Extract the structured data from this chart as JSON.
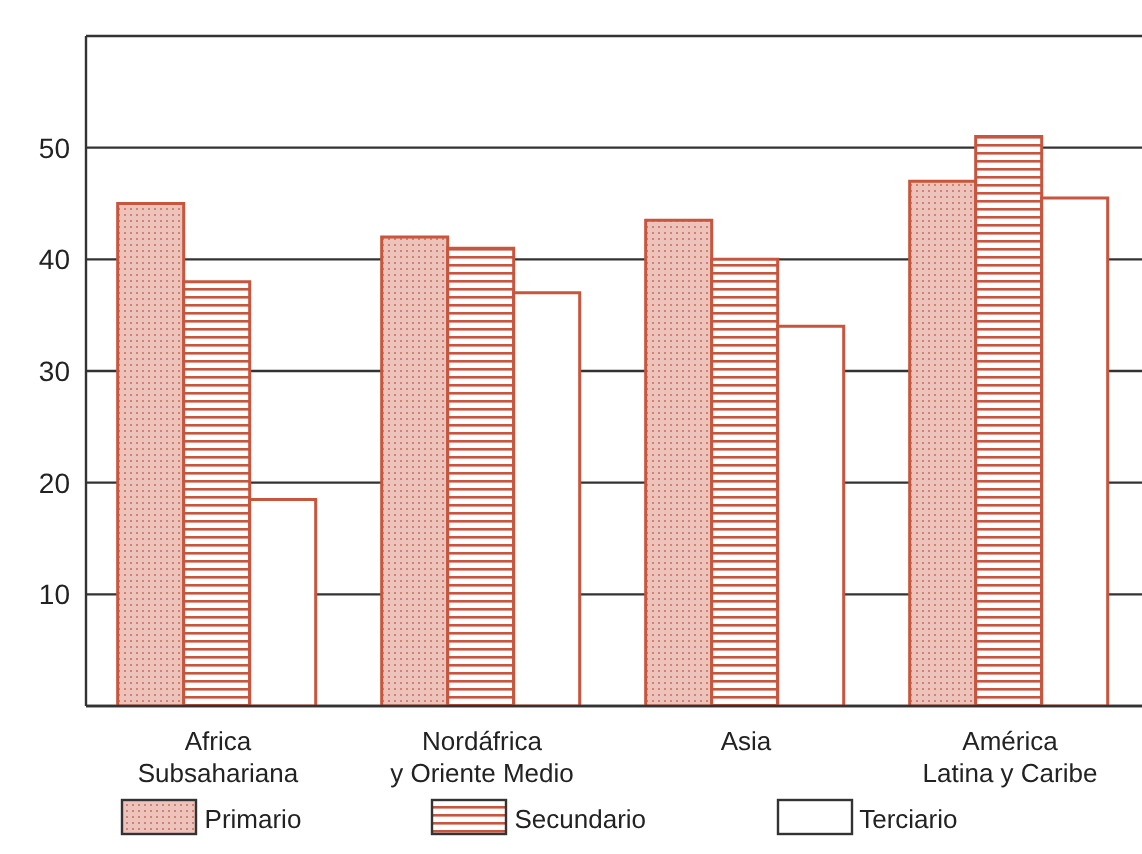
{
  "chart_data": {
    "type": "bar",
    "categories": [
      "Africa\nSubsahariana",
      "Nordáfrica\ny Oriente Medio",
      "Asia",
      "América\nLatina y Caribe"
    ],
    "series": [
      {
        "name": "Primario",
        "color": "#c8553d",
        "values": [
          45,
          42,
          43.5,
          47
        ]
      },
      {
        "name": "Secundario",
        "color": "#c8553d",
        "values": [
          38,
          41,
          40,
          51
        ]
      },
      {
        "name": "Terciario",
        "color": "#c8553d",
        "values": [
          18.5,
          37,
          34,
          45.5
        ]
      }
    ],
    "ylim": [
      0,
      60
    ],
    "yticks": [
      {
        "value": 0,
        "label": null
      },
      10,
      20,
      30,
      40,
      50
    ],
    "grid": "y",
    "legend": "bottom"
  }
}
